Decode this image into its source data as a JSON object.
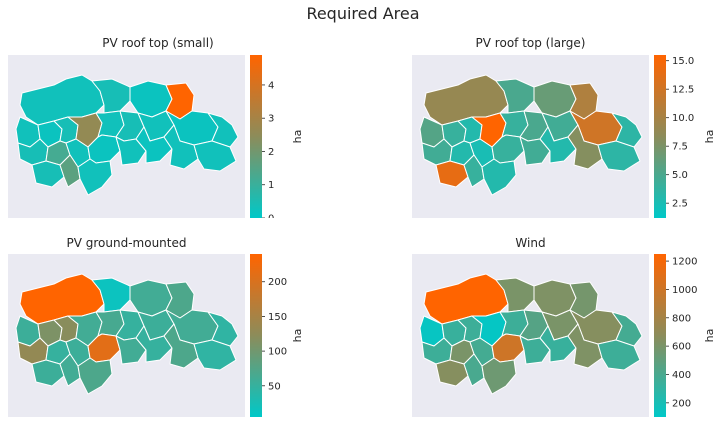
{
  "figure": {
    "suptitle": "Required Area"
  },
  "colors": {
    "axes_background": "#eaeaf2",
    "cmap_low": "#00c8c8",
    "cmap_mid": "#8c8c5a",
    "cmap_high": "#ff6400",
    "region_edge": "#ffffff"
  },
  "chart_data": [
    {
      "type": "choropleth",
      "title": "PV roof top (small)",
      "colorbar_label": "ha",
      "colorbar_range": [
        0,
        4.9
      ],
      "colorbar_ticks": [
        "0",
        "1",
        "2",
        "3",
        "4"
      ],
      "colorbar_tick_values": [
        0,
        1,
        2,
        3,
        4
      ],
      "regions": [
        {
          "id": "r1",
          "value": 0.3
        },
        {
          "id": "r2",
          "value": 0.4
        },
        {
          "id": "r3",
          "value": 0.2
        },
        {
          "id": "r4",
          "value": 4.9
        },
        {
          "id": "r5",
          "value": 0.3
        },
        {
          "id": "r6",
          "value": 0.2
        },
        {
          "id": "r7",
          "value": 0.4
        },
        {
          "id": "r8",
          "value": 2.6
        },
        {
          "id": "r9",
          "value": 0.3
        },
        {
          "id": "r10",
          "value": 0.4
        },
        {
          "id": "r11",
          "value": 0.3
        },
        {
          "id": "r12",
          "value": 0.2
        },
        {
          "id": "r13",
          "value": 0.3
        },
        {
          "id": "r14",
          "value": 0.4
        },
        {
          "id": "r15",
          "value": 1.2
        },
        {
          "id": "r16",
          "value": 0.3
        },
        {
          "id": "r17",
          "value": 0.2
        },
        {
          "id": "r18",
          "value": 0.3
        },
        {
          "id": "r19",
          "value": 0.2
        },
        {
          "id": "r20",
          "value": 0.3
        },
        {
          "id": "r21",
          "value": 0.3
        },
        {
          "id": "r22",
          "value": 0.4
        },
        {
          "id": "r23",
          "value": 1.6
        },
        {
          "id": "r24",
          "value": 0.3
        }
      ]
    },
    {
      "type": "choropleth",
      "title": "PV roof top (large)",
      "colorbar_label": "ha",
      "colorbar_range": [
        1.2,
        15.5
      ],
      "colorbar_ticks": [
        "2.5",
        "5.0",
        "7.5",
        "10.0",
        "12.5",
        "15.0"
      ],
      "colorbar_tick_values": [
        2.5,
        5.0,
        7.5,
        10.0,
        12.5,
        15.0
      ],
      "regions": [
        {
          "id": "r1",
          "value": 9.0
        },
        {
          "id": "r2",
          "value": 5.0
        },
        {
          "id": "r3",
          "value": 6.5
        },
        {
          "id": "r4",
          "value": 10.5
        },
        {
          "id": "r5",
          "value": 5.5
        },
        {
          "id": "r6",
          "value": 4.0
        },
        {
          "id": "r7",
          "value": 3.0
        },
        {
          "id": "r8",
          "value": 15.5
        },
        {
          "id": "r9",
          "value": 4.0
        },
        {
          "id": "r10",
          "value": 5.0
        },
        {
          "id": "r11",
          "value": 4.5
        },
        {
          "id": "r12",
          "value": 12.5
        },
        {
          "id": "r13",
          "value": 3.5
        },
        {
          "id": "r14",
          "value": 4.5
        },
        {
          "id": "r15",
          "value": 3.0
        },
        {
          "id": "r16",
          "value": 2.5
        },
        {
          "id": "r17",
          "value": 4.0
        },
        {
          "id": "r18",
          "value": 4.5
        },
        {
          "id": "r19",
          "value": 3.0
        },
        {
          "id": "r20",
          "value": 8.0
        },
        {
          "id": "r21",
          "value": 3.5
        },
        {
          "id": "r22",
          "value": 14.0
        },
        {
          "id": "r23",
          "value": 4.0
        },
        {
          "id": "r24",
          "value": 3.0
        }
      ]
    },
    {
      "type": "choropleth",
      "title": "PV ground-mounted",
      "colorbar_label": "ha",
      "colorbar_range": [
        5,
        240
      ],
      "colorbar_ticks": [
        "50",
        "100",
        "150",
        "200"
      ],
      "colorbar_tick_values": [
        50,
        100,
        150,
        200
      ],
      "regions": [
        {
          "id": "r1",
          "value": 240
        },
        {
          "id": "r2",
          "value": 15
        },
        {
          "id": "r3",
          "value": 60
        },
        {
          "id": "r4",
          "value": 70
        },
        {
          "id": "r5",
          "value": 55
        },
        {
          "id": "r6",
          "value": 110
        },
        {
          "id": "r7",
          "value": 120
        },
        {
          "id": "r8",
          "value": 60
        },
        {
          "id": "r9",
          "value": 65
        },
        {
          "id": "r10",
          "value": 50
        },
        {
          "id": "r11",
          "value": 55
        },
        {
          "id": "r12",
          "value": 60
        },
        {
          "id": "r13",
          "value": 45
        },
        {
          "id": "r14",
          "value": 130
        },
        {
          "id": "r15",
          "value": 50
        },
        {
          "id": "r16",
          "value": 55
        },
        {
          "id": "r17",
          "value": 210
        },
        {
          "id": "r18",
          "value": 60
        },
        {
          "id": "r19",
          "value": 50
        },
        {
          "id": "r20",
          "value": 70
        },
        {
          "id": "r21",
          "value": 45
        },
        {
          "id": "r22",
          "value": 55
        },
        {
          "id": "r23",
          "value": 60
        },
        {
          "id": "r24",
          "value": 70
        }
      ]
    },
    {
      "type": "choropleth",
      "title": "Wind",
      "colorbar_label": "ha",
      "colorbar_range": [
        100,
        1250
      ],
      "colorbar_ticks": [
        "200",
        "400",
        "600",
        "800",
        "1000",
        "1200"
      ],
      "colorbar_tick_values": [
        200,
        400,
        600,
        800,
        1000,
        1200
      ],
      "regions": [
        {
          "id": "r1",
          "value": 1250
        },
        {
          "id": "r2",
          "value": 600
        },
        {
          "id": "r3",
          "value": 620
        },
        {
          "id": "r4",
          "value": 580
        },
        {
          "id": "r5",
          "value": 130
        },
        {
          "id": "r6",
          "value": 330
        },
        {
          "id": "r7",
          "value": 350
        },
        {
          "id": "r8",
          "value": 120
        },
        {
          "id": "r9",
          "value": 350
        },
        {
          "id": "r10",
          "value": 450
        },
        {
          "id": "r11",
          "value": 600
        },
        {
          "id": "r12",
          "value": 650
        },
        {
          "id": "r13",
          "value": 380
        },
        {
          "id": "r14",
          "value": 350
        },
        {
          "id": "r15",
          "value": 600
        },
        {
          "id": "r16",
          "value": 380
        },
        {
          "id": "r17",
          "value": 1000
        },
        {
          "id": "r18",
          "value": 350
        },
        {
          "id": "r19",
          "value": 330
        },
        {
          "id": "r20",
          "value": 620
        },
        {
          "id": "r21",
          "value": 350
        },
        {
          "id": "r22",
          "value": 650
        },
        {
          "id": "r23",
          "value": 400
        },
        {
          "id": "r24",
          "value": 550
        }
      ]
    }
  ]
}
